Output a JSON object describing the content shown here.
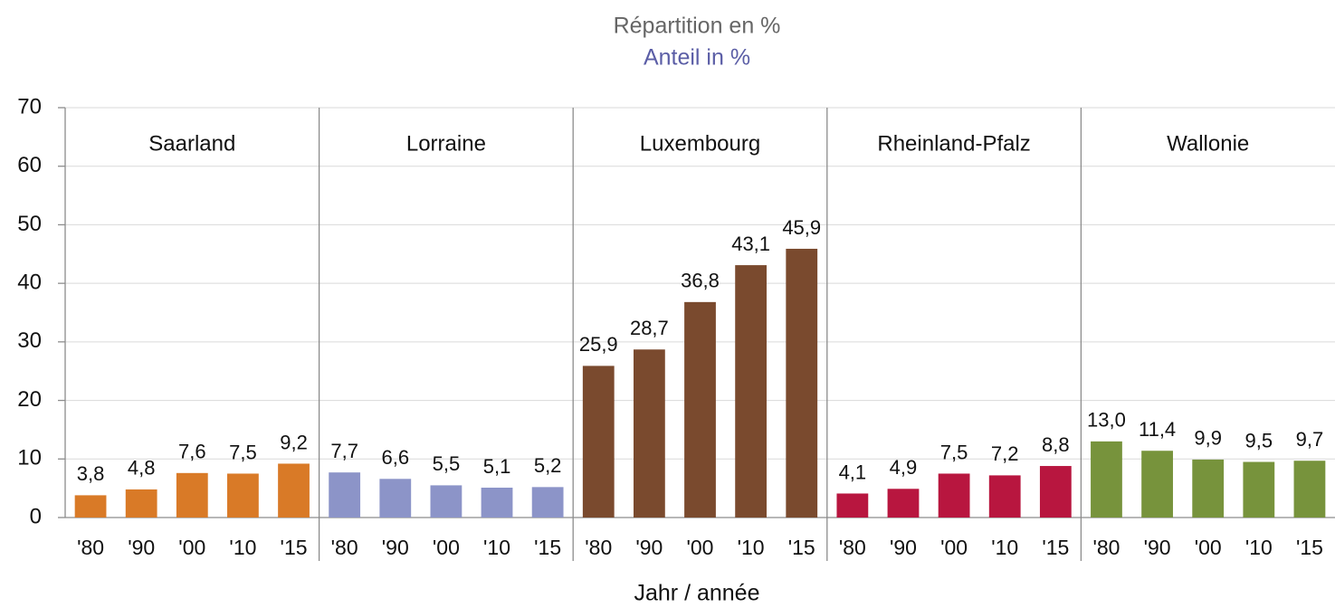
{
  "chart_data": {
    "type": "bar",
    "title": "Répartition en %",
    "subtitle": "Anteil in %",
    "x_label": "Jahr / année",
    "categories": [
      "'80",
      "'90",
      "'00",
      "'10",
      "'15"
    ],
    "series": [
      {
        "name": "Saarland",
        "color": "#d97a27",
        "values": [
          3.8,
          4.8,
          7.6,
          7.5,
          9.2
        ],
        "value_labels": [
          "3,8",
          "4,8",
          "7,6",
          "7,5",
          "9,2"
        ]
      },
      {
        "name": "Lorraine",
        "color": "#8c94c8",
        "values": [
          7.7,
          6.6,
          5.5,
          5.1,
          5.2
        ],
        "value_labels": [
          "7,7",
          "6,6",
          "5,5",
          "5,1",
          "5,2"
        ]
      },
      {
        "name": "Luxembourg",
        "color": "#7a4a2e",
        "values": [
          25.9,
          28.7,
          36.8,
          43.1,
          45.9
        ],
        "value_labels": [
          "25,9",
          "28,7",
          "36,8",
          "43,1",
          "45,9"
        ]
      },
      {
        "name": "Rheinland-Pfalz",
        "color": "#b8163f",
        "values": [
          4.1,
          4.9,
          7.5,
          7.2,
          8.8
        ],
        "value_labels": [
          "4,1",
          "4,9",
          "7,5",
          "7,2",
          "8,8"
        ]
      },
      {
        "name": "Wallonie",
        "color": "#77933c",
        "values": [
          13.0,
          11.4,
          9.9,
          9.5,
          9.7
        ],
        "value_labels": [
          "13,0",
          "11,4",
          "9,9",
          "9,5",
          "9,7"
        ]
      }
    ],
    "ylim": [
      0,
      70
    ],
    "yticks": [
      0,
      10,
      20,
      30,
      40,
      50,
      60,
      70
    ],
    "grid": true
  }
}
